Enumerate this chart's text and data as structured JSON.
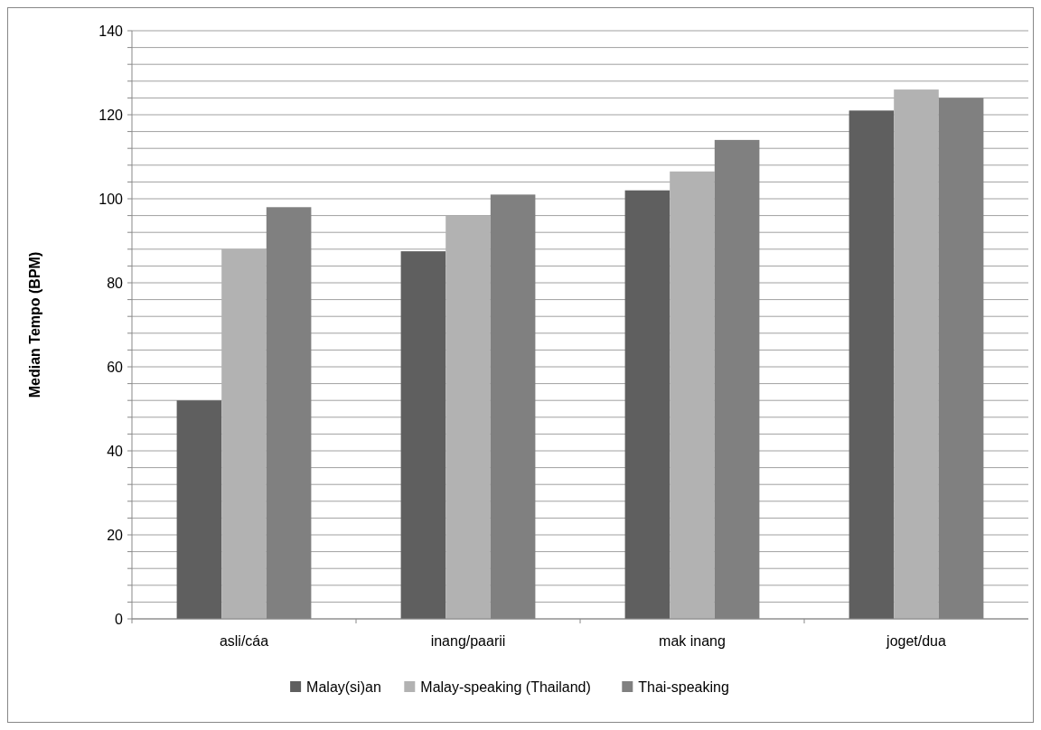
{
  "chart_data": {
    "type": "bar",
    "ylabel": "Median Tempo (BPM)",
    "categories": [
      "asli/cáa",
      "inang/paarii",
      "mak inang",
      "joget/dua"
    ],
    "series": [
      {
        "name": "Malay(si)an",
        "color": "#5f5f5f",
        "values": [
          52,
          87.5,
          102,
          121
        ]
      },
      {
        "name": "Malay-speaking (Thailand)",
        "color": "#b2b2b2",
        "values": [
          88,
          96,
          106.5,
          126
        ]
      },
      {
        "name": "Thai-speaking",
        "color": "#808080",
        "values": [
          98,
          101,
          114,
          124
        ]
      }
    ],
    "ylim": [
      0,
      140
    ],
    "yticks": [
      0,
      {
        "value": 4,
        "label": null
      },
      {
        "value": 8,
        "label": null
      },
      {
        "value": 12,
        "label": null
      },
      {
        "value": 16,
        "label": null
      },
      20,
      {
        "value": 24,
        "label": null
      },
      {
        "value": 28,
        "label": null
      },
      {
        "value": 32,
        "label": null
      },
      {
        "value": 36,
        "label": null
      },
      40,
      {
        "value": 44,
        "label": null
      },
      {
        "value": 48,
        "label": null
      },
      {
        "value": 52,
        "label": null
      },
      {
        "value": 56,
        "label": null
      },
      60,
      {
        "value": 64,
        "label": null
      },
      {
        "value": 68,
        "label": null
      },
      {
        "value": 72,
        "label": null
      },
      {
        "value": 76,
        "label": null
      },
      80,
      {
        "value": 84,
        "label": null
      },
      {
        "value": 88,
        "label": null
      },
      {
        "value": 92,
        "label": null
      },
      {
        "value": 96,
        "label": null
      },
      100,
      {
        "value": 104,
        "label": null
      },
      {
        "value": 108,
        "label": null
      },
      {
        "value": 112,
        "label": null
      },
      {
        "value": 116,
        "label": null
      },
      120,
      {
        "value": 124,
        "label": null
      },
      {
        "value": 128,
        "label": null
      },
      {
        "value": 132,
        "label": null
      },
      {
        "value": 136,
        "label": null
      },
      140
    ],
    "grid": "y",
    "legend": "bottom"
  }
}
